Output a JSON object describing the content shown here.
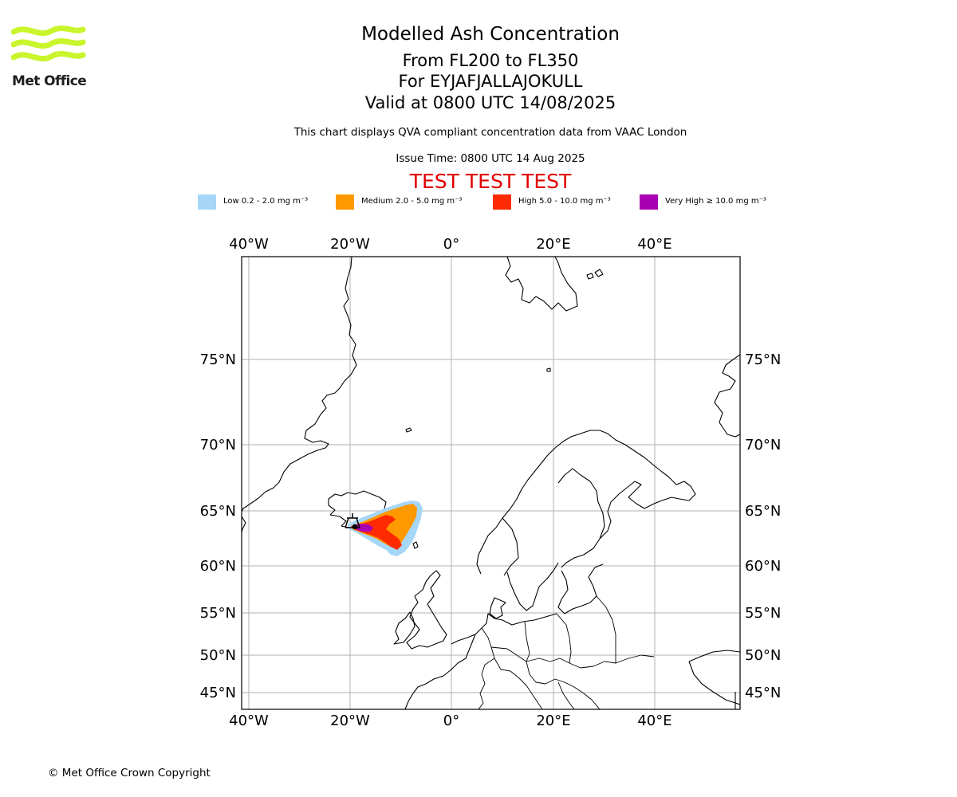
{
  "brand": {
    "name": "Met Office",
    "logo_color": "#c8f52c"
  },
  "header": {
    "title": "Modelled Ash Concentration",
    "level_range": "From FL200 to FL350",
    "volcano": "For EYJAFJALLAJOKULL",
    "valid_time": "Valid at 0800 UTC 14/08/2025",
    "note": "This chart displays QVA compliant concentration data from VAAC London",
    "issue_time": "Issue Time: 0800 UTC 14 Aug 2025",
    "test_banner": "TEST TEST TEST",
    "test_color": "#e00000"
  },
  "legend": [
    {
      "label": "Low 0.2 - 2.0 mg m⁻³",
      "color": "#a6d6f8"
    },
    {
      "label": "Medium 2.0 - 5.0 mg m⁻³",
      "color": "#ff9900"
    },
    {
      "label": "High 5.0 - 10.0 mg m⁻³",
      "color": "#ff2a00"
    },
    {
      "label": "Very High ≥ 10.0 mg m⁻³",
      "color": "#aa00b4"
    }
  ],
  "map": {
    "lon_labels": [
      "40°W",
      "20°W",
      "0°",
      "20°E",
      "40°E"
    ],
    "lat_labels": [
      "75°N",
      "70°N",
      "65°N",
      "60°N",
      "55°N",
      "50°N",
      "45°N"
    ],
    "volcano_marker": "volcano-icon"
  },
  "footer": {
    "copyright": "© Met Office Crown Copyright"
  }
}
